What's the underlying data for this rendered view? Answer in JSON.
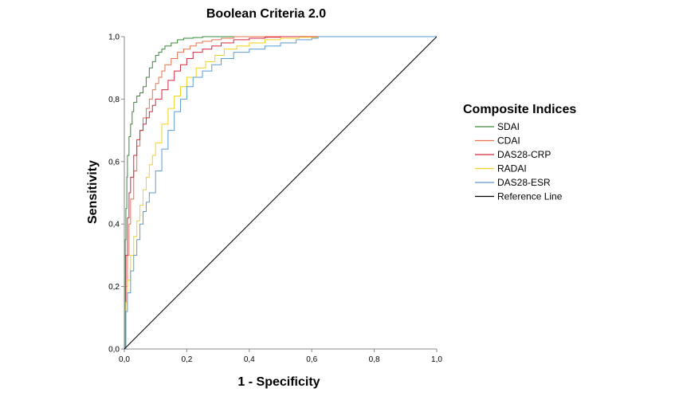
{
  "chart_data": {
    "type": "line",
    "title": "Boolean Criteria 2.0",
    "xlabel": "1 - Specificity",
    "ylabel": "Sensitivity",
    "xlim": [
      0,
      1
    ],
    "ylim": [
      0,
      1
    ],
    "x_ticks": [
      "0,0",
      "0,2",
      "0,4",
      "0,6",
      "0,8",
      "1,0"
    ],
    "y_ticks": [
      "0,0",
      "0,2",
      "0,4",
      "0,6",
      "0,8",
      "1,0"
    ],
    "x_tick_values": [
      0,
      0.2,
      0.4,
      0.6,
      0.8,
      1.0
    ],
    "y_tick_values": [
      0,
      0.2,
      0.4,
      0.6,
      0.8,
      1.0
    ],
    "grid": false,
    "legend_title": "Composite Indices",
    "legend_position": "right",
    "series": [
      {
        "name": "SDAI",
        "color": "#3a8a3a",
        "x": [
          0,
          0.003,
          0.005,
          0.008,
          0.01,
          0.015,
          0.02,
          0.025,
          0.03,
          0.04,
          0.05,
          0.06,
          0.07,
          0.08,
          0.09,
          0.1,
          0.11,
          0.12,
          0.13,
          0.15,
          0.17,
          0.19,
          0.22,
          0.25,
          0.28,
          0.32,
          0.4,
          1.0
        ],
        "y": [
          0,
          0.35,
          0.45,
          0.55,
          0.62,
          0.68,
          0.72,
          0.76,
          0.79,
          0.81,
          0.82,
          0.84,
          0.87,
          0.9,
          0.92,
          0.94,
          0.95,
          0.96,
          0.97,
          0.98,
          0.99,
          0.995,
          0.997,
          1.0,
          1.0,
          1.0,
          1.0,
          1.0
        ]
      },
      {
        "name": "CDAI",
        "color": "#e8724a",
        "x": [
          0,
          0.005,
          0.01,
          0.015,
          0.02,
          0.03,
          0.04,
          0.05,
          0.06,
          0.07,
          0.08,
          0.09,
          0.1,
          0.11,
          0.12,
          0.13,
          0.15,
          0.17,
          0.19,
          0.21,
          0.23,
          0.25,
          0.28,
          0.31,
          0.35,
          0.4,
          0.5,
          1.0
        ],
        "y": [
          0,
          0.2,
          0.3,
          0.4,
          0.48,
          0.57,
          0.65,
          0.7,
          0.74,
          0.77,
          0.8,
          0.83,
          0.85,
          0.87,
          0.89,
          0.91,
          0.93,
          0.95,
          0.96,
          0.97,
          0.98,
          0.985,
          0.99,
          0.995,
          1.0,
          1.0,
          1.0,
          1.0
        ]
      },
      {
        "name": "DAS28-CRP",
        "color": "#d8283c",
        "x": [
          0,
          0.005,
          0.01,
          0.015,
          0.02,
          0.03,
          0.04,
          0.05,
          0.06,
          0.07,
          0.08,
          0.09,
          0.1,
          0.12,
          0.14,
          0.16,
          0.18,
          0.2,
          0.22,
          0.25,
          0.28,
          0.31,
          0.35,
          0.4,
          0.45,
          0.5,
          0.6,
          1.0
        ],
        "y": [
          0,
          0.3,
          0.42,
          0.5,
          0.55,
          0.62,
          0.67,
          0.7,
          0.72,
          0.74,
          0.76,
          0.78,
          0.8,
          0.83,
          0.86,
          0.89,
          0.91,
          0.93,
          0.95,
          0.96,
          0.97,
          0.98,
          0.99,
          0.995,
          0.998,
          1.0,
          1.0,
          1.0
        ]
      },
      {
        "name": "RADAI",
        "color": "#f2d21c",
        "x": [
          0,
          0.005,
          0.01,
          0.02,
          0.03,
          0.04,
          0.05,
          0.06,
          0.07,
          0.08,
          0.09,
          0.1,
          0.12,
          0.14,
          0.16,
          0.18,
          0.2,
          0.23,
          0.26,
          0.29,
          0.32,
          0.36,
          0.4,
          0.45,
          0.5,
          0.56,
          0.62,
          1.0
        ],
        "y": [
          0,
          0.15,
          0.22,
          0.3,
          0.36,
          0.41,
          0.46,
          0.51,
          0.55,
          0.59,
          0.62,
          0.66,
          0.72,
          0.77,
          0.81,
          0.84,
          0.87,
          0.9,
          0.92,
          0.94,
          0.96,
          0.97,
          0.98,
          0.99,
          0.995,
          0.998,
          1.0,
          1.0
        ]
      },
      {
        "name": "DAS28-ESR",
        "color": "#5b9bd5",
        "x": [
          0,
          0.005,
          0.01,
          0.02,
          0.03,
          0.04,
          0.05,
          0.06,
          0.07,
          0.08,
          0.1,
          0.12,
          0.14,
          0.16,
          0.18,
          0.2,
          0.22,
          0.25,
          0.28,
          0.31,
          0.35,
          0.4,
          0.45,
          0.5,
          0.55,
          0.6,
          0.62,
          1.0
        ],
        "y": [
          0,
          0.12,
          0.18,
          0.25,
          0.3,
          0.35,
          0.4,
          0.44,
          0.47,
          0.5,
          0.57,
          0.64,
          0.7,
          0.76,
          0.8,
          0.84,
          0.87,
          0.89,
          0.91,
          0.93,
          0.95,
          0.96,
          0.97,
          0.98,
          0.99,
          0.995,
          1.0,
          1.0
        ]
      },
      {
        "name": "Reference Line",
        "color": "#000000",
        "x": [
          0,
          1
        ],
        "y": [
          0,
          1
        ]
      }
    ]
  }
}
